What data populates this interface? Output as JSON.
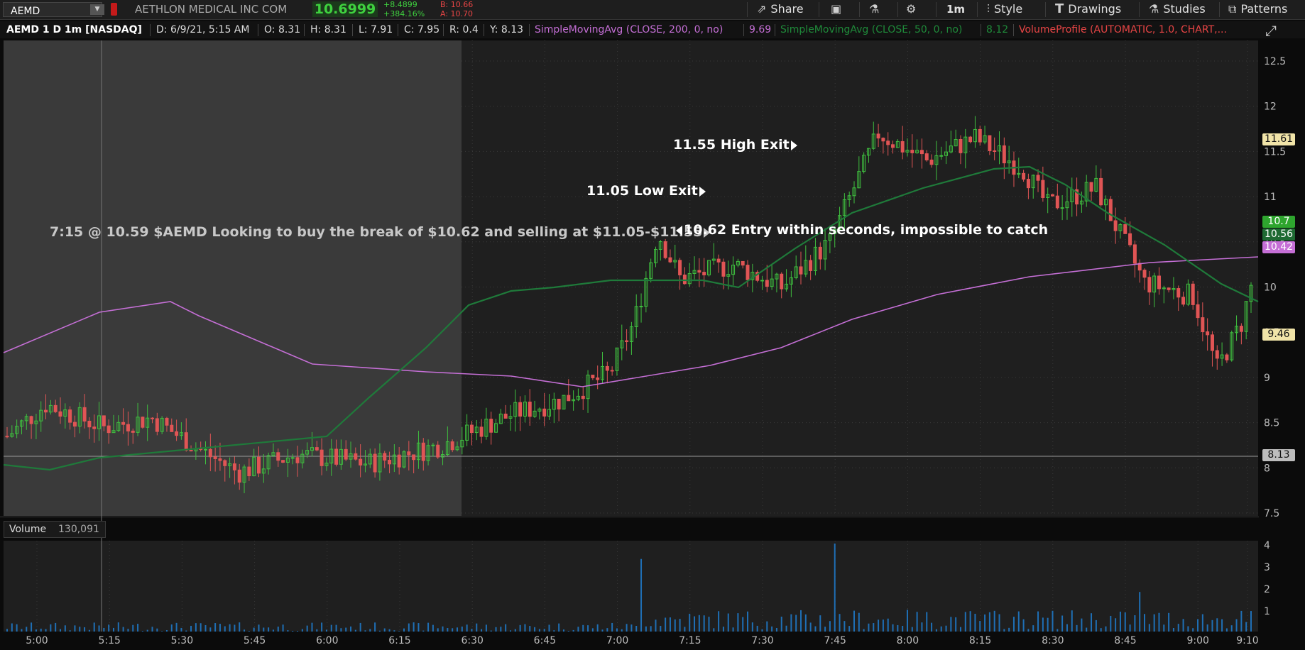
{
  "topbar": {
    "symbol": "AEMD",
    "flag": "",
    "company": "AETHLON MEDICAL INC COM",
    "last_price": "10.6999",
    "net_change": "+8.4899",
    "pct_change": "+384.16%",
    "bid": "B: 10.66",
    "ask": "A: 10.70",
    "buttons": {
      "share": "Share",
      "timeframe": "1m",
      "style": "Style",
      "drawings": "Drawings",
      "studies": "Studies",
      "patterns": "Patterns"
    }
  },
  "infobar": {
    "title": "AEMD 1 D 1m [NASDAQ]",
    "date": "D: 6/9/21, 5:15 AM",
    "open": "O: 8.31",
    "high": "H: 8.31",
    "low": "L: 7.91",
    "close": "C: 7.95",
    "range": "R: 0.4",
    "y": "Y: 8.13",
    "sma200": "SimpleMovingAvg (CLOSE, 200, 0, no)",
    "sma200_val": "9.69",
    "sma50": "SimpleMovingAvg (CLOSE, 50, 0, no)",
    "sma50_val": "8.12",
    "volprofile": "VolumeProfile (AUTOMATIC, 1.0, CHART,..."
  },
  "volume": {
    "label": "Volume",
    "value": "130,091"
  },
  "annotations": {
    "a1": "7:15 @ 10.59 $AEMD Looking to buy the break of $10.62 and selling at $11.05-$11.55",
    "a2": "10.62 Entry within seconds, impossible to catch",
    "a3": "11.05 Low Exit",
    "a4": "11.55 High Exit"
  },
  "price_axis": [
    "12.5",
    "12",
    "11.5",
    "11",
    "10.5",
    "10",
    "9.5",
    "9",
    "8.5",
    "8",
    "7.5"
  ],
  "volume_axis": [
    "4",
    "3",
    "2",
    "1"
  ],
  "time_axis": [
    "5:00",
    "5:15",
    "5:30",
    "5:45",
    "6:00",
    "6:15",
    "6:30",
    "6:45",
    "7:00",
    "7:15",
    "7:30",
    "7:45",
    "8:00",
    "8:15",
    "8:30",
    "8:45",
    "9:00",
    "9:10"
  ],
  "price_tags": {
    "t1": "11.61",
    "t2": "10.7",
    "t3": "10.56",
    "t4": "10.42",
    "t5": "9.46",
    "t6": "8.13"
  },
  "colors": {
    "up": "#3fbf3f",
    "down": "#e05555",
    "sma200": "#c56fd6",
    "sma50": "#1f7a3a",
    "accent_red": "#e84545"
  }
}
